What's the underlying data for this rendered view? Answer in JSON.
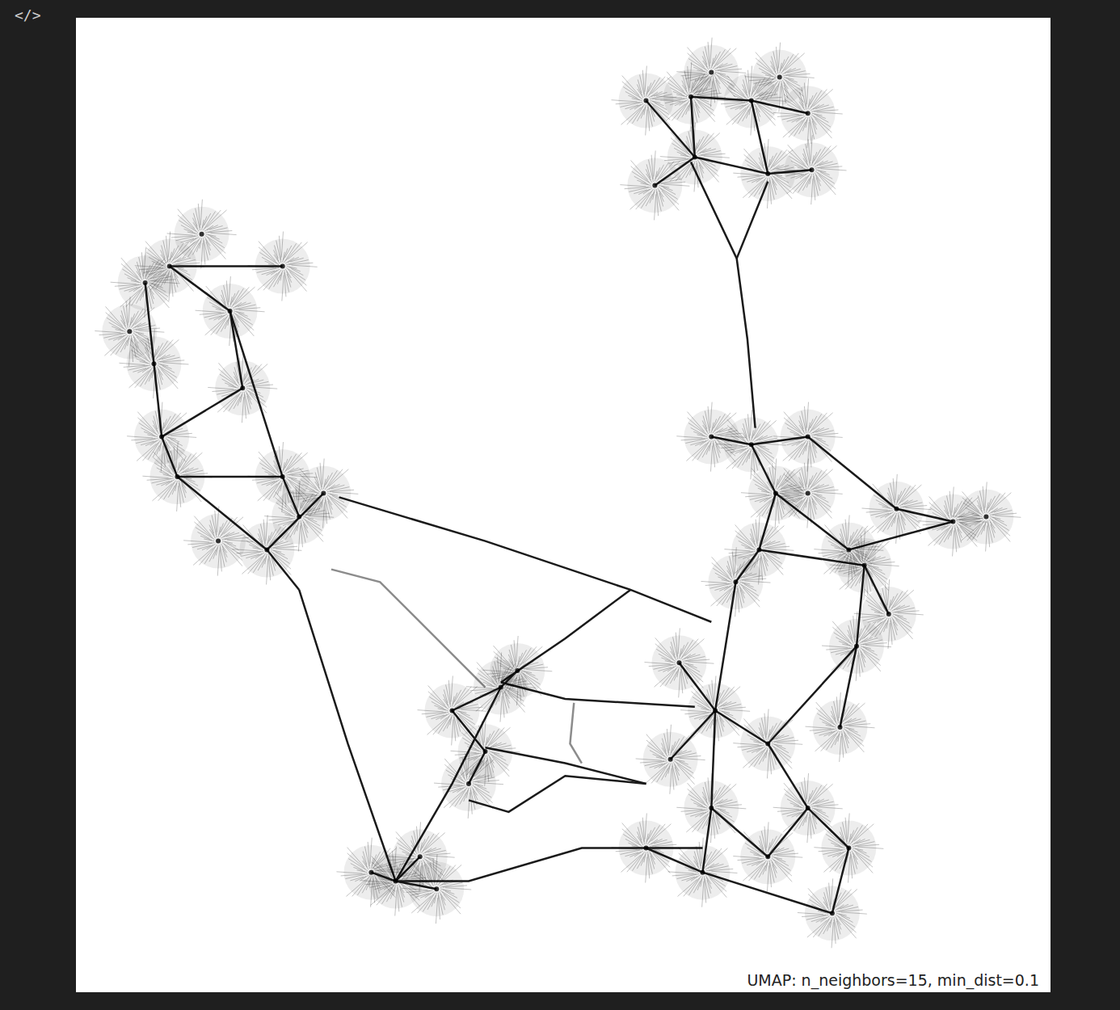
{
  "page": {
    "icon": "</>"
  },
  "chart_data": {
    "type": "scatter",
    "annotation": "UMAP: n_neighbors=15, min_dist=0.1",
    "tick_labels": false,
    "xlim": [
      0,
      100
    ],
    "ylim": [
      0,
      100
    ],
    "color": "#000000",
    "marker": "circle",
    "x": [
      63.1,
      69.3,
      63.5,
      71.0,
      58.5,
      75.1,
      75.5,
      59.4,
      65.2,
      72.2,
      9.6,
      15.8,
      7.1,
      8.0,
      8.8,
      17.1,
      10.4,
      21.2,
      19.6,
      14.6,
      22.9,
      25.4,
      21.2,
      5.5,
      12.9,
      43.6,
      42.0,
      40.3,
      38.6,
      45.3,
      32.8,
      30.3,
      37.0,
      35.3,
      69.3,
      65.2,
      75.1,
      71.8,
      79.3,
      90.0,
      93.4,
      84.2,
      70.1,
      75.1,
      67.7,
      80.1,
      83.4,
      65.6,
      61.9,
      61.0,
      71.0,
      78.4,
      65.2,
      75.1,
      79.3,
      71.0,
      64.3,
      58.5,
      77.6,
      80.9
    ],
    "y": [
      91.9,
      91.5,
      85.7,
      84.0,
      91.5,
      90.2,
      84.4,
      82.8,
      94.4,
      93.9,
      74.5,
      69.9,
      72.8,
      64.5,
      57.0,
      62.0,
      52.9,
      52.9,
      45.4,
      46.3,
      48.8,
      51.2,
      74.5,
      67.8,
      77.8,
      31.3,
      24.7,
      21.4,
      28.9,
      33.0,
      11.4,
      12.3,
      10.6,
      13.9,
      56.2,
      57.0,
      57.0,
      51.2,
      45.4,
      48.3,
      48.8,
      49.6,
      45.4,
      51.2,
      42.1,
      35.5,
      38.8,
      28.9,
      33.8,
      23.9,
      25.5,
      27.2,
      18.9,
      18.9,
      14.8,
      13.9,
      12.3,
      14.8,
      8.1,
      43.8
    ],
    "edges": [
      {
        "x": [
          63.1,
          67.8,
          68.9,
          69.7
        ],
        "y": [
          85.2,
          75.3,
          67.0,
          57.9
        ],
        "color": "#1a1a1a"
      },
      {
        "x": [
          71.0,
          67.8
        ],
        "y": [
          83.2,
          75.3
        ],
        "color": "#1a1a1a"
      },
      {
        "x": [
          27.0,
          42.0,
          56.9,
          65.2
        ],
        "y": [
          50.8,
          46.3,
          41.3,
          38.0
        ],
        "color": "#1a1a1a"
      },
      {
        "x": [
          22.9,
          27.9,
          32.8
        ],
        "y": [
          41.3,
          25.5,
          11.4
        ],
        "color": "#1a1a1a"
      },
      {
        "x": [
          26.2,
          31.2,
          42.0
        ],
        "y": [
          43.4,
          42.1,
          31.3
        ],
        "color": "#8c8c8c"
      },
      {
        "x": [
          43.6,
          50.2,
          56.9
        ],
        "y": [
          31.8,
          36.3,
          41.3
        ],
        "color": "#1a1a1a"
      },
      {
        "x": [
          43.6,
          50.2,
          63.5
        ],
        "y": [
          31.8,
          30.1,
          29.3
        ],
        "color": "#1a1a1a"
      },
      {
        "x": [
          42.0,
          50.2,
          58.5
        ],
        "y": [
          25.1,
          23.5,
          21.4
        ],
        "color": "#1a1a1a"
      },
      {
        "x": [
          40.3,
          44.4,
          50.2,
          58.5
        ],
        "y": [
          19.7,
          18.5,
          22.2,
          21.4
        ],
        "color": "#1a1a1a"
      },
      {
        "x": [
          32.8,
          40.3,
          51.9,
          64.3
        ],
        "y": [
          11.4,
          11.4,
          14.8,
          14.8
        ],
        "color": "#1a1a1a"
      },
      {
        "x": [
          32.8,
          38.6,
          43.6
        ],
        "y": [
          11.4,
          21.4,
          31.3
        ],
        "color": "#1a1a1a"
      },
      {
        "x": [
          51.1,
          50.7,
          51.9
        ],
        "y": [
          29.7,
          25.5,
          23.5
        ],
        "color": "#8c8c8c"
      },
      {
        "x": [
          9.6,
          15.8,
          21.2
        ],
        "y": [
          74.5,
          69.9,
          52.9
        ],
        "color": "#1a1a1a"
      },
      {
        "x": [
          7.1,
          8.0,
          8.8,
          10.4,
          19.6,
          25.4
        ],
        "y": [
          72.8,
          64.5,
          57.0,
          52.9,
          45.4,
          51.2
        ],
        "color": "#1a1a1a"
      },
      {
        "x": [
          8.8,
          17.1,
          15.8
        ],
        "y": [
          57.0,
          62.0,
          69.9
        ],
        "color": "#1a1a1a"
      },
      {
        "x": [
          10.4,
          21.2,
          22.9
        ],
        "y": [
          52.9,
          52.9,
          48.8
        ],
        "color": "#1a1a1a"
      },
      {
        "x": [
          9.6,
          21.2
        ],
        "y": [
          74.5,
          74.5
        ],
        "color": "#1a1a1a"
      },
      {
        "x": [
          19.6,
          22.9
        ],
        "y": [
          45.4,
          41.3
        ],
        "color": "#1a1a1a"
      },
      {
        "x": [
          63.1,
          69.3,
          75.1
        ],
        "y": [
          91.9,
          91.5,
          90.2
        ],
        "color": "#1a1a1a"
      },
      {
        "x": [
          63.1,
          63.5,
          71.0,
          69.3
        ],
        "y": [
          91.9,
          85.7,
          84.0,
          91.5
        ],
        "color": "#1a1a1a"
      },
      {
        "x": [
          58.5,
          63.5,
          59.4
        ],
        "y": [
          91.5,
          85.7,
          82.8
        ],
        "color": "#1a1a1a"
      },
      {
        "x": [
          71.0,
          75.5
        ],
        "y": [
          84.0,
          84.4
        ],
        "color": "#1a1a1a"
      },
      {
        "x": [
          65.2,
          69.3,
          75.1
        ],
        "y": [
          57.0,
          56.2,
          57.0
        ],
        "color": "#1a1a1a"
      },
      {
        "x": [
          69.3,
          71.8,
          70.1,
          67.7
        ],
        "y": [
          56.2,
          51.2,
          45.4,
          42.1
        ],
        "color": "#1a1a1a"
      },
      {
        "x": [
          71.8,
          79.3,
          90.0
        ],
        "y": [
          51.2,
          45.4,
          48.3
        ],
        "color": "#1a1a1a"
      },
      {
        "x": [
          75.1,
          84.2,
          90.0
        ],
        "y": [
          57.0,
          49.6,
          48.3
        ],
        "color": "#1a1a1a"
      },
      {
        "x": [
          70.1,
          80.9,
          80.1,
          78.4
        ],
        "y": [
          45.4,
          43.8,
          35.5,
          27.2
        ],
        "color": "#1a1a1a"
      },
      {
        "x": [
          67.7,
          65.6,
          61.9
        ],
        "y": [
          42.1,
          28.9,
          33.8
        ],
        "color": "#1a1a1a"
      },
      {
        "x": [
          65.6,
          71.0,
          80.1
        ],
        "y": [
          28.9,
          25.5,
          35.5
        ],
        "color": "#1a1a1a"
      },
      {
        "x": [
          65.6,
          65.2,
          64.3
        ],
        "y": [
          28.9,
          18.9,
          12.3
        ],
        "color": "#1a1a1a"
      },
      {
        "x": [
          71.0,
          75.1,
          79.3,
          77.6
        ],
        "y": [
          25.5,
          18.9,
          14.8,
          8.1
        ],
        "color": "#1a1a1a"
      },
      {
        "x": [
          65.2,
          71.0,
          75.1
        ],
        "y": [
          18.9,
          13.9,
          18.9
        ],
        "color": "#1a1a1a"
      },
      {
        "x": [
          61.0,
          65.6
        ],
        "y": [
          23.9,
          28.9
        ],
        "color": "#1a1a1a"
      },
      {
        "x": [
          58.5,
          64.3,
          77.6
        ],
        "y": [
          14.8,
          12.3,
          8.1
        ],
        "color": "#1a1a1a"
      },
      {
        "x": [
          83.4,
          80.9
        ],
        "y": [
          38.8,
          43.8
        ],
        "color": "#1a1a1a"
      },
      {
        "x": [
          45.3,
          43.6,
          38.6,
          42.0,
          40.3
        ],
        "y": [
          33.0,
          31.3,
          28.9,
          24.7,
          21.4
        ],
        "color": "#1a1a1a"
      },
      {
        "x": [
          30.3,
          32.8,
          37.0
        ],
        "y": [
          12.3,
          11.4,
          10.6
        ],
        "color": "#1a1a1a"
      },
      {
        "x": [
          32.8,
          35.3
        ],
        "y": [
          11.4,
          13.9
        ],
        "color": "#1a1a1a"
      }
    ]
  }
}
